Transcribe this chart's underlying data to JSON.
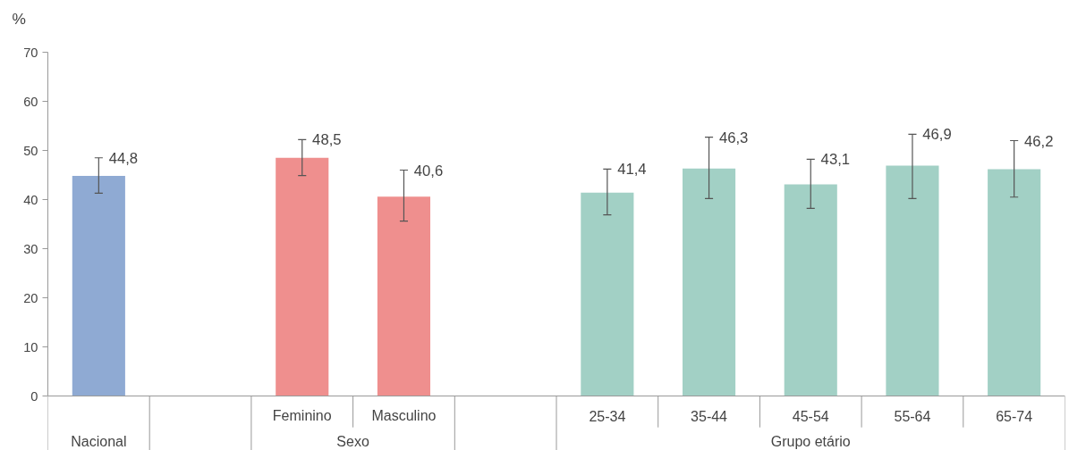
{
  "chart_data": {
    "type": "bar",
    "ylabel": "%",
    "categories": [
      null,
      null,
      "Feminino",
      "Masculino",
      null,
      "25-34",
      "35-44",
      "45-54",
      "55-64",
      "65-74"
    ],
    "values": [
      44.8,
      null,
      48.5,
      40.6,
      null,
      41.4,
      46.3,
      43.1,
      46.9,
      46.2
    ],
    "colors": [
      "#8faad3",
      null,
      "#ef8f8e",
      "#ef8f8e",
      null,
      "#a2d0c5",
      "#a2d0c5",
      "#a2d0c5",
      "#a2d0c5",
      "#a2d0c5"
    ],
    "errors": [
      [
        41.3,
        48.5
      ],
      null,
      [
        44.9,
        52.2
      ],
      [
        35.6,
        46.0
      ],
      null,
      [
        36.9,
        46.2
      ],
      [
        40.2,
        52.7
      ],
      [
        38.2,
        48.2
      ],
      [
        40.2,
        53.3
      ],
      [
        40.5,
        52.0
      ]
    ],
    "value_labels": [
      "44,8",
      null,
      "48,5",
      "40,6",
      null,
      "41,4",
      "46,3",
      "43,1",
      "46,9",
      "46,2"
    ],
    "annotations": [
      "Nacional",
      "Sexo",
      "Grupo etário"
    ],
    "ylim": [
      0,
      70
    ],
    "yticks": [
      0,
      10,
      20,
      30,
      40,
      50,
      60,
      70
    ],
    "grid": false
  }
}
